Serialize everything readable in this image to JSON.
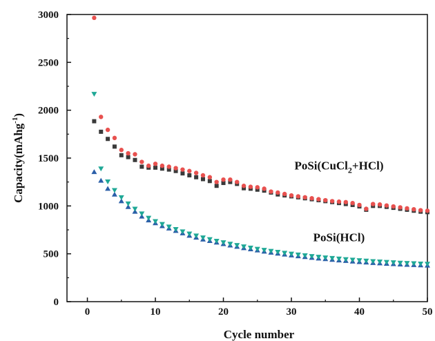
{
  "chart_data": {
    "type": "scatter",
    "title": "",
    "xlabel": "Cycle number",
    "ylabel": {
      "main": "Capacity(mAhg",
      "sup": "-1",
      "close": ")"
    },
    "xlim": [
      -3,
      50
    ],
    "ylim": [
      0,
      3000
    ],
    "xticks": [
      0,
      10,
      20,
      30,
      40,
      50
    ],
    "yticks": [
      0,
      500,
      1000,
      1500,
      2000,
      2500,
      3000
    ],
    "grid": false,
    "legend": "none",
    "annotations": [
      {
        "id": "cucl2",
        "parts": [
          "PoSi(CuCl",
          "2",
          "+HCl)"
        ],
        "x": 37,
        "y": 1380
      },
      {
        "id": "hcl",
        "parts": [
          "PoSi(HCl)"
        ],
        "x": 37,
        "y": 630
      }
    ],
    "series": [
      {
        "marker": "square",
        "color": "#3a3a3a",
        "x": [
          1,
          2,
          3,
          4,
          5,
          6,
          7,
          8,
          9,
          10,
          11,
          12,
          13,
          14,
          15,
          16,
          17,
          18,
          19,
          20,
          21,
          22,
          23,
          24,
          25,
          26,
          27,
          28,
          29,
          30,
          31,
          32,
          33,
          34,
          35,
          36,
          37,
          38,
          39,
          40,
          41,
          42,
          43,
          44,
          45,
          46,
          47,
          48,
          49,
          50
        ],
        "values": [
          1885,
          1775,
          1700,
          1620,
          1530,
          1510,
          1480,
          1410,
          1400,
          1400,
          1390,
          1380,
          1365,
          1340,
          1320,
          1300,
          1280,
          1260,
          1210,
          1240,
          1250,
          1230,
          1185,
          1180,
          1170,
          1160,
          1140,
          1120,
          1110,
          1100,
          1090,
          1080,
          1070,
          1060,
          1050,
          1040,
          1030,
          1020,
          1010,
          995,
          960,
          1000,
          1000,
          990,
          980,
          970,
          960,
          950,
          940,
          935
        ]
      },
      {
        "marker": "circle",
        "color": "#e8514f",
        "x": [
          1,
          2,
          3,
          4,
          5,
          6,
          7,
          8,
          9,
          10,
          11,
          12,
          13,
          14,
          15,
          16,
          17,
          18,
          19,
          20,
          21,
          22,
          23,
          24,
          25,
          26,
          27,
          28,
          29,
          30,
          31,
          32,
          33,
          34,
          35,
          36,
          37,
          38,
          39,
          40,
          41,
          42,
          43,
          44,
          45,
          46,
          47,
          48,
          49,
          50
        ],
        "values": [
          2965,
          1930,
          1795,
          1710,
          1585,
          1550,
          1540,
          1460,
          1420,
          1440,
          1420,
          1410,
          1395,
          1380,
          1365,
          1345,
          1320,
          1300,
          1250,
          1275,
          1275,
          1250,
          1210,
          1200,
          1195,
          1180,
          1150,
          1140,
          1125,
          1110,
          1100,
          1090,
          1080,
          1070,
          1060,
          1050,
          1045,
          1040,
          1030,
          1010,
          970,
          1020,
          1015,
          1005,
          995,
          985,
          975,
          965,
          955,
          950
        ]
      },
      {
        "marker": "triangle-up",
        "color": "#2b5fa8",
        "x": [
          1,
          2,
          3,
          4,
          5,
          6,
          7,
          8,
          9,
          10,
          11,
          12,
          13,
          14,
          15,
          16,
          17,
          18,
          19,
          20,
          21,
          22,
          23,
          24,
          25,
          26,
          27,
          28,
          29,
          30,
          31,
          32,
          33,
          34,
          35,
          36,
          37,
          38,
          39,
          40,
          41,
          42,
          43,
          44,
          45,
          46,
          47,
          48,
          49,
          50
        ],
        "values": [
          1355,
          1265,
          1180,
          1120,
          1050,
          990,
          940,
          890,
          850,
          820,
          790,
          765,
          740,
          715,
          690,
          670,
          650,
          635,
          618,
          602,
          588,
          574,
          560,
          548,
          536,
          524,
          513,
          503,
          493,
          484,
          475,
          467,
          459,
          452,
          445,
          438,
          432,
          426,
          420,
          415,
          410,
          405,
          401,
          397,
          393,
          389,
          386,
          383,
          380,
          378
        ]
      },
      {
        "marker": "triangle-down",
        "color": "#1fa896",
        "x": [
          1,
          2,
          3,
          4,
          5,
          6,
          7,
          8,
          9,
          10,
          11,
          12,
          13,
          14,
          15,
          16,
          17,
          18,
          19,
          20,
          21,
          22,
          23,
          24,
          25,
          26,
          27,
          28,
          29,
          30,
          31,
          32,
          33,
          34,
          35,
          36,
          37,
          38,
          39,
          40,
          41,
          42,
          43,
          44,
          45,
          46,
          47,
          48,
          49,
          50
        ],
        "values": [
          2170,
          1390,
          1255,
          1165,
          1090,
          1025,
          970,
          920,
          875,
          840,
          810,
          783,
          757,
          733,
          710,
          690,
          670,
          652,
          635,
          619,
          604,
          590,
          576,
          563,
          551,
          540,
          529,
          519,
          509,
          500,
          491,
          483,
          475,
          468,
          461,
          455,
          449,
          443,
          437,
          432,
          427,
          422,
          418,
          414,
          410,
          406,
          403,
          400,
          397,
          395
        ]
      }
    ]
  }
}
